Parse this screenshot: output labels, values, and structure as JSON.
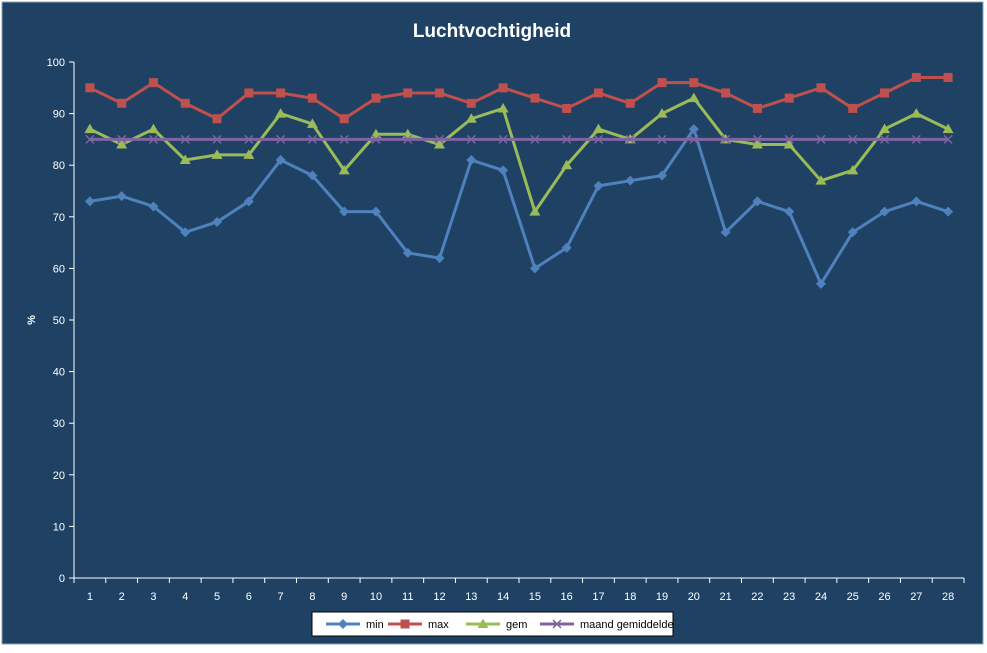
{
  "chart_data": {
    "type": "line",
    "title": "Luchtvochtigheid",
    "xlabel": "",
    "ylabel": "%",
    "ylim": [
      0,
      100
    ],
    "ystep": 10,
    "grid": false,
    "legend_position": "bottom",
    "x": [
      "1",
      "2",
      "3",
      "4",
      "5",
      "6",
      "7",
      "8",
      "9",
      "10",
      "11",
      "12",
      "13",
      "14",
      "15",
      "16",
      "17",
      "18",
      "19",
      "20",
      "21",
      "22",
      "23",
      "24",
      "25",
      "26",
      "27",
      "28"
    ],
    "series": [
      {
        "name": "min",
        "color": "#4f81bd",
        "marker": "diamond",
        "values": [
          73,
          74,
          72,
          67,
          69,
          73,
          81,
          78,
          71,
          71,
          63,
          62,
          81,
          79,
          60,
          64,
          76,
          77,
          78,
          87,
          67,
          73,
          71,
          57,
          67,
          71,
          73,
          71
        ]
      },
      {
        "name": "max",
        "color": "#c0504d",
        "marker": "square",
        "values": [
          95,
          92,
          96,
          92,
          89,
          94,
          94,
          93,
          89,
          93,
          94,
          94,
          92,
          95,
          93,
          91,
          94,
          92,
          96,
          96,
          94,
          91,
          93,
          95,
          91,
          94,
          97,
          97
        ]
      },
      {
        "name": "gem",
        "color": "#9bbb59",
        "marker": "triangle",
        "values": [
          87,
          84,
          87,
          81,
          82,
          82,
          90,
          88,
          79,
          86,
          86,
          84,
          89,
          91,
          71,
          80,
          87,
          85,
          90,
          93,
          85,
          84,
          84,
          77,
          79,
          87,
          90,
          87
        ]
      },
      {
        "name": "maand gemiddelde",
        "color": "#8064a2",
        "marker": "x",
        "values": [
          85,
          85,
          85,
          85,
          85,
          85,
          85,
          85,
          85,
          85,
          85,
          85,
          85,
          85,
          85,
          85,
          85,
          85,
          85,
          85,
          85,
          85,
          85,
          85,
          85,
          85,
          85,
          85
        ]
      }
    ],
    "colors": {
      "background": "#1f4264",
      "frame": "#ffffff",
      "text": "#ffffff",
      "legend_background": "#ffffff",
      "legend_text": "#000000"
    }
  }
}
